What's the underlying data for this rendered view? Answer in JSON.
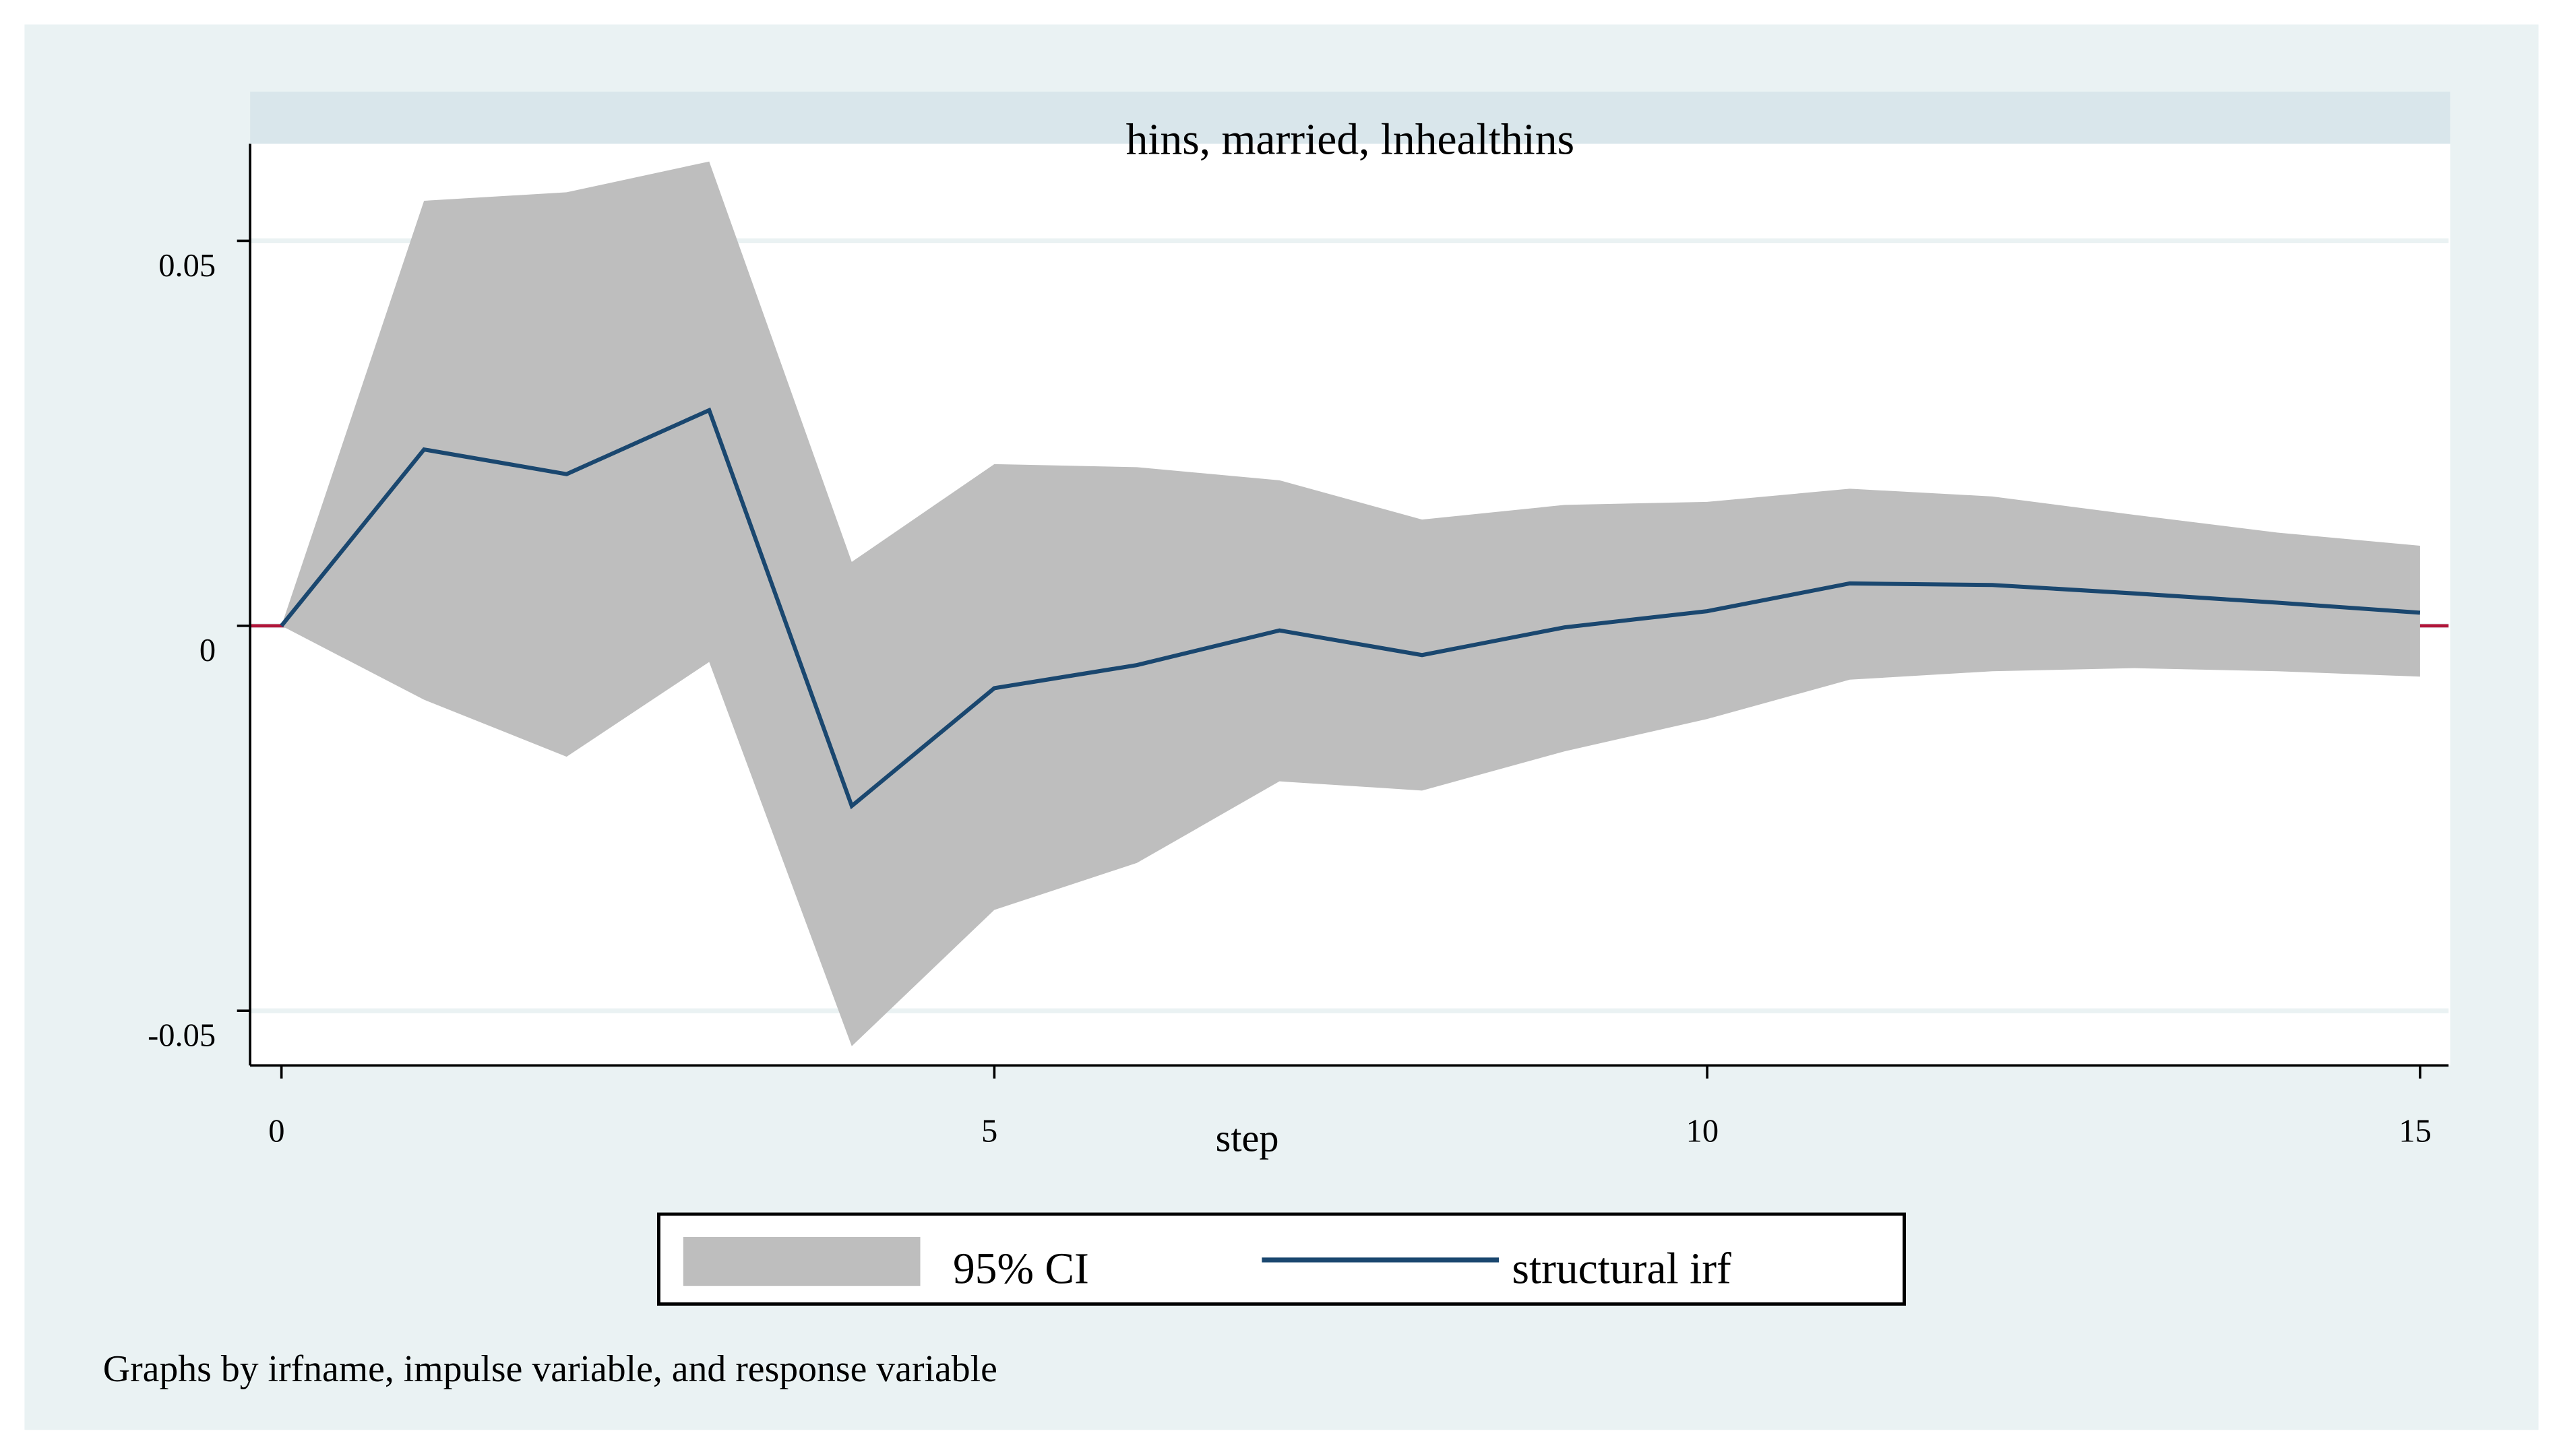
{
  "chart_data": {
    "type": "irf",
    "title": "hins, married, lnhealthins",
    "x_label": "step",
    "note": "Graphs by irfname, impulse variable, and response variable",
    "x": [
      0,
      1,
      2,
      3,
      4,
      5,
      6,
      7,
      8,
      9,
      10,
      11,
      12,
      13,
      14,
      15
    ],
    "series": [
      {
        "name": "95% CI",
        "color": "#bebebe",
        "upper": [
          0,
          0.0552,
          0.0563,
          0.0603,
          0.0083,
          0.021,
          0.0206,
          0.0189,
          0.0138,
          0.0157,
          0.0161,
          0.0178,
          0.0168,
          0.0144,
          0.0121,
          0.0104
        ],
        "lower": [
          0,
          -0.0096,
          -0.017,
          -0.0047,
          -0.0546,
          -0.0369,
          -0.0308,
          -0.0202,
          -0.0214,
          -0.0163,
          -0.0121,
          -0.007,
          -0.0059,
          -0.0055,
          -0.0059,
          -0.0066
        ]
      },
      {
        "name": "structural irf",
        "color": "#1a476f",
        "values": [
          0,
          0.0229,
          0.0197,
          0.028,
          -0.0234,
          -0.0081,
          -0.0051,
          -0.0006,
          -0.0038,
          -0.0002,
          0.0019,
          0.0055,
          0.0053,
          0.0042,
          0.003,
          0.0017
        ]
      }
    ],
    "xlim": [
      -0.22,
      15.2
    ],
    "ylim": [
      -0.0571,
      0.0626
    ],
    "xticks": [
      0,
      5,
      10,
      15
    ],
    "yticks": [
      -0.05,
      0,
      0.05
    ],
    "grid": true,
    "reference_line": {
      "value": 0,
      "color": "#b0163a"
    }
  }
}
